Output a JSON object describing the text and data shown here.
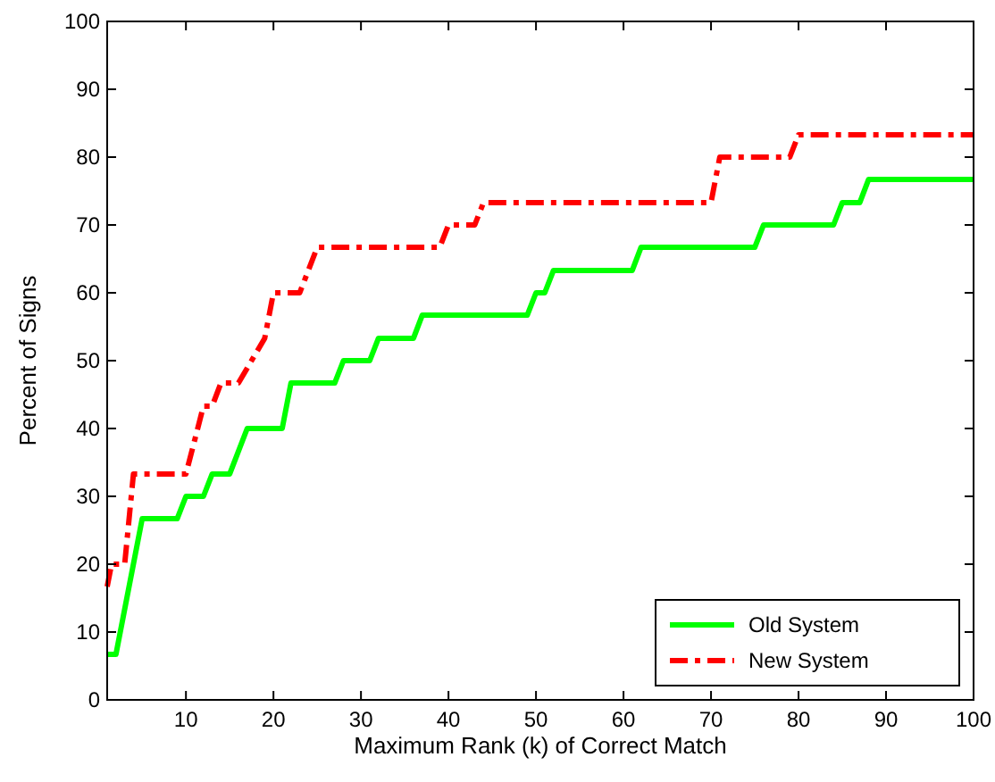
{
  "chart_data": {
    "type": "line",
    "xlabel": "Maximum Rank (k) of Correct Match",
    "ylabel": "Percent of Signs",
    "xlim": [
      1,
      100
    ],
    "xticks": [
      10,
      20,
      30,
      40,
      50,
      60,
      70,
      80,
      90,
      100
    ],
    "ylim": [
      0,
      100
    ],
    "yticks": [
      0,
      10,
      20,
      30,
      40,
      50,
      60,
      70,
      80,
      90,
      100
    ],
    "grid": false,
    "legend": "bottom right",
    "marker": "none",
    "series": [
      {
        "name": "Old System",
        "color": "#00ff00",
        "line_style": "solid",
        "x": [
          1,
          2,
          5,
          9,
          10,
          12,
          13,
          15,
          17,
          21,
          22,
          27,
          28,
          31,
          32,
          36,
          37,
          49,
          50,
          51,
          52,
          61,
          62,
          75,
          76,
          84,
          85,
          87,
          88,
          100
        ],
        "values": [
          6.7,
          6.7,
          26.7,
          26.7,
          30,
          30,
          33.3,
          33.3,
          40,
          40,
          46.7,
          46.7,
          50,
          50,
          53.3,
          53.3,
          56.7,
          56.7,
          60,
          60,
          63.3,
          63.3,
          66.7,
          66.7,
          70,
          70,
          73.3,
          73.3,
          76.7,
          76.7
        ]
      },
      {
        "name": "New System",
        "color": "#ff0000",
        "line_style": "dashdot",
        "x": [
          1,
          1.5,
          3,
          4,
          10,
          12,
          13,
          14,
          16,
          19,
          20,
          23,
          25,
          39,
          40,
          43,
          44,
          70,
          71,
          79,
          80,
          100
        ],
        "values": [
          16.7,
          20,
          20,
          33.3,
          33.3,
          43.3,
          43.3,
          46.7,
          46.7,
          53.3,
          60,
          60,
          66.7,
          66.7,
          70,
          70,
          73.3,
          73.3,
          80,
          80,
          83.3,
          83.3
        ]
      }
    ]
  }
}
